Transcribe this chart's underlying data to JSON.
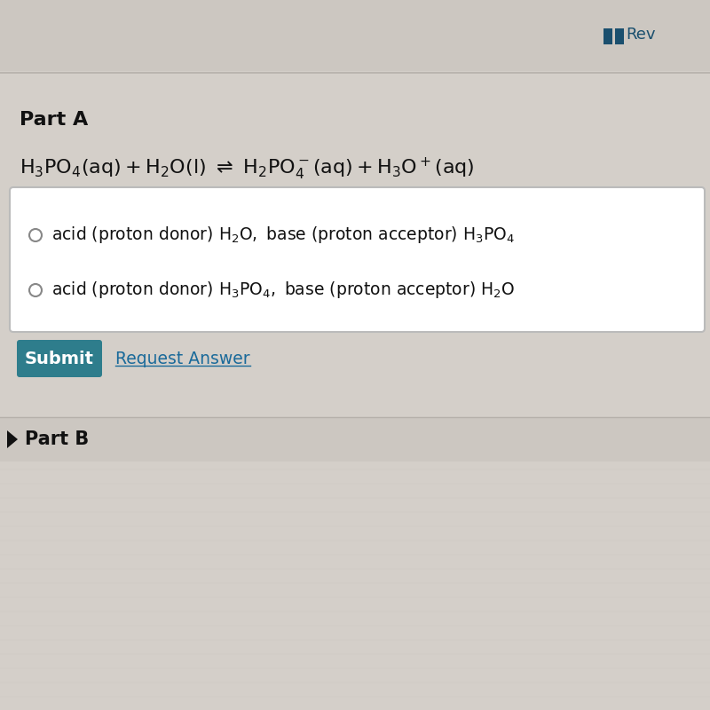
{
  "bg_color": "#d4cfc9",
  "bg_top_color": "#ccc7c1",
  "white_panel_color": "#ffffff",
  "title": "Part A",
  "part_b_label": "Part B",
  "review_text": "Rev",
  "submit_bg": "#2e7d8c",
  "submit_text": "Submit",
  "request_answer_text": "Request Answer",
  "icon_color": "#1a4f6e",
  "radio_color": "#888888",
  "box_border_color": "#bbbbbb",
  "font_color": "#111111",
  "link_color": "#1a6a9a"
}
